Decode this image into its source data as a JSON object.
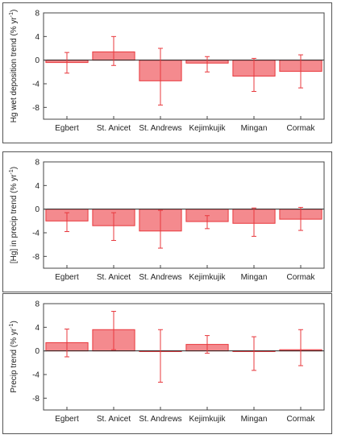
{
  "chart_data": [
    {
      "type": "bar",
      "ylabel": "Hg wet deposition trend (% yr",
      "ylabel_sup": "-1",
      "ylabel_close": ")",
      "ylim": [
        -10,
        8
      ],
      "yticks": [
        8,
        4,
        0,
        -4,
        -8
      ],
      "categories": [
        "Egbert",
        "St. Anicet",
        "St. Andrews",
        "Kejimkujik",
        "Mingan",
        "Cormak"
      ],
      "values": [
        -0.4,
        1.4,
        -3.5,
        -0.5,
        -2.7,
        -1.9
      ],
      "err_low": [
        -2.2,
        -0.9,
        -7.6,
        -2.0,
        -5.3,
        -4.7
      ],
      "err_high": [
        1.3,
        4.0,
        2.0,
        0.6,
        0.3,
        0.9
      ]
    },
    {
      "type": "bar",
      "ylabel": "[Hg] in precip trend (% yr",
      "ylabel_sup": "-1",
      "ylabel_close": ")",
      "ylim": [
        -10,
        8
      ],
      "yticks": [
        8,
        4,
        0,
        -4,
        -8
      ],
      "categories": [
        "Egbert",
        "St. Anicet",
        "St. Andrews",
        "Kejimkujik",
        "Mingan",
        "Cormak"
      ],
      "values": [
        -2.0,
        -2.8,
        -3.7,
        -2.1,
        -2.4,
        -1.7
      ],
      "err_low": [
        -3.8,
        -5.3,
        -6.6,
        -3.3,
        -4.6,
        -3.6
      ],
      "err_high": [
        -0.6,
        -0.6,
        -0.2,
        -1.1,
        0.2,
        0.3
      ]
    },
    {
      "type": "bar",
      "ylabel": "Precip trend (% yr",
      "ylabel_sup": "-1",
      "ylabel_close": ")",
      "ylim": [
        -10,
        8
      ],
      "yticks": [
        8,
        4,
        0,
        -4,
        -8
      ],
      "categories": [
        "Egbert",
        "St. Anicet",
        "St. Andrews",
        "Kejimkujik",
        "Mingan",
        "Cormak"
      ],
      "values": [
        1.4,
        3.6,
        -0.1,
        1.1,
        -0.1,
        0.2
      ],
      "err_low": [
        -1.0,
        0.2,
        -5.3,
        -0.4,
        -3.3,
        -2.5
      ],
      "err_high": [
        3.7,
        6.7,
        3.6,
        2.6,
        2.4,
        3.6
      ]
    }
  ],
  "style": {
    "bar_fill": "#f48a8e",
    "bar_stroke": "#e8383d",
    "error_color": "#e8383d",
    "axis_color": "#444444"
  }
}
